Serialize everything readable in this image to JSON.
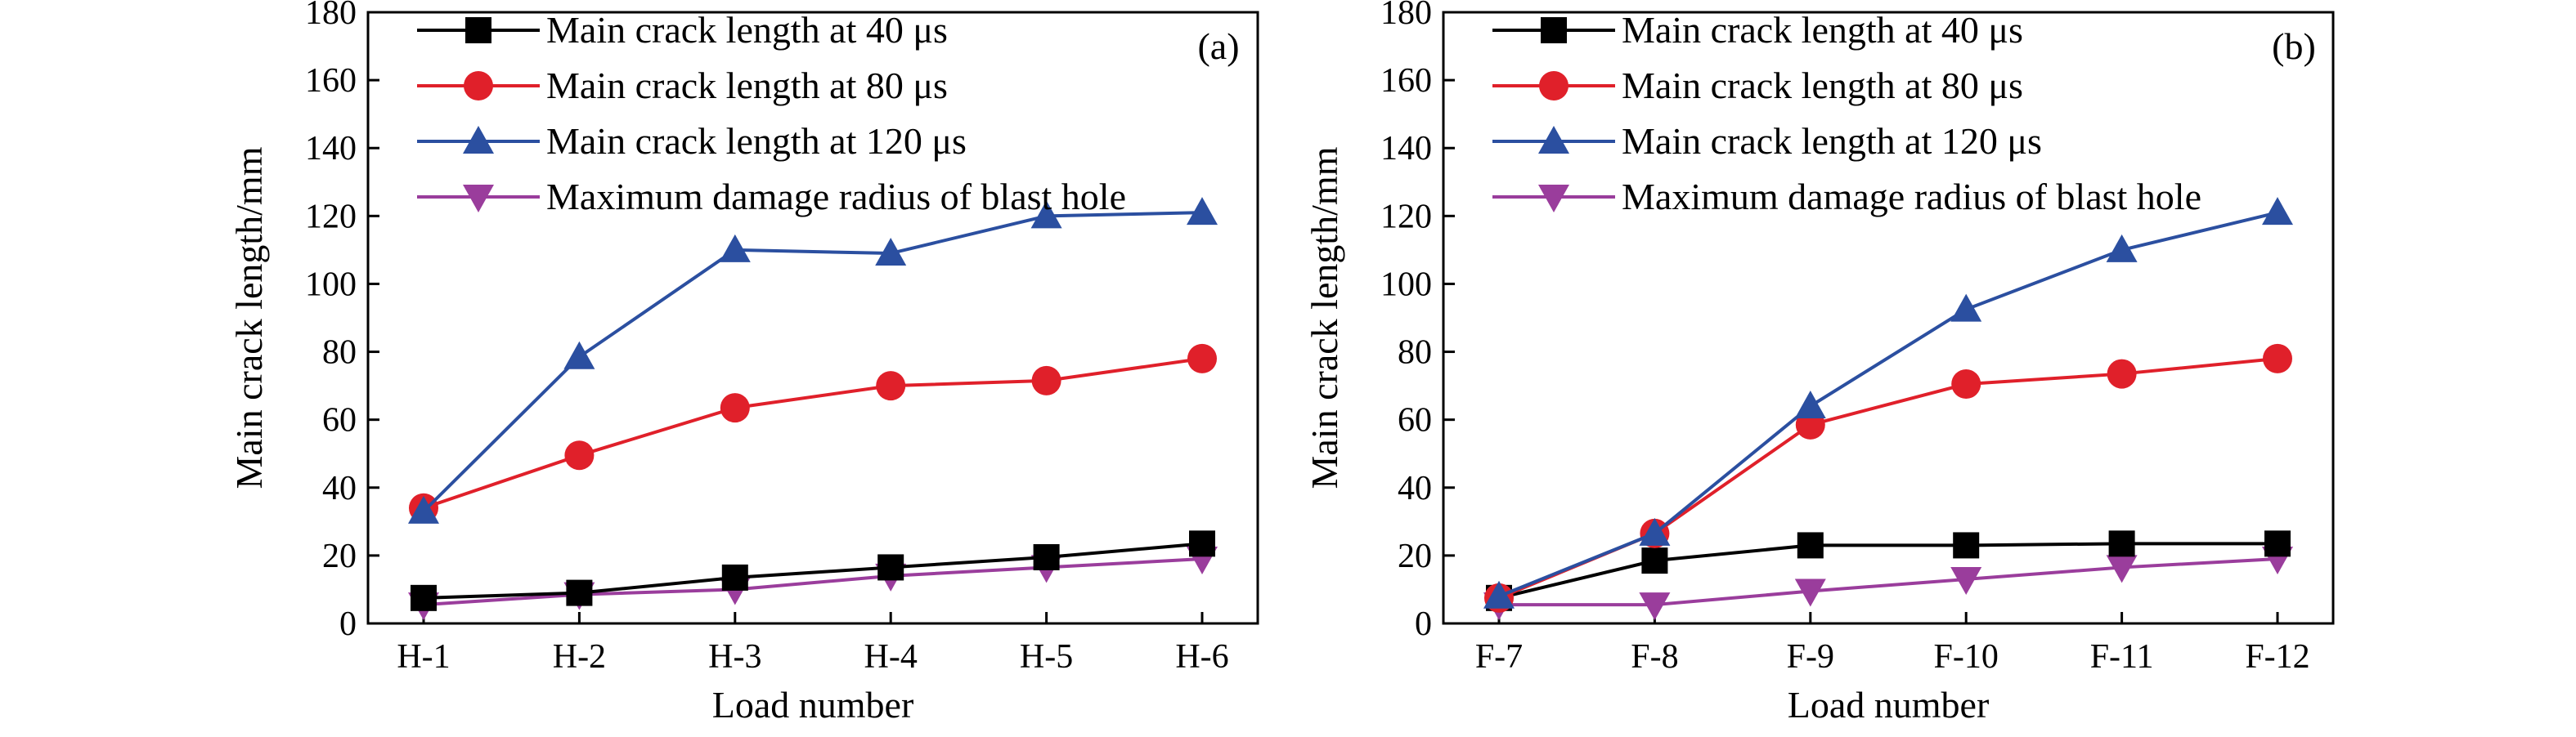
{
  "chart_data": [
    {
      "type": "line",
      "panel_label": "(a)",
      "categories": [
        "H-1",
        "H-2",
        "H-3",
        "H-4",
        "H-5",
        "H-6"
      ],
      "xlabel": "Load number",
      "ylabel": "Main crack length/mm",
      "ylim": [
        0,
        180
      ],
      "yticks": [
        "0",
        "20",
        "40",
        "60",
        "80",
        "100",
        "120",
        "140",
        "160",
        "180"
      ],
      "legend_position": "top-left",
      "series": [
        {
          "name": "Main crack length at 40 μs",
          "color": "#000000",
          "marker": "square",
          "values": [
            7.5,
            9,
            13.5,
            16.5,
            19.5,
            23.5
          ]
        },
        {
          "name": "Main crack length at 80 μs",
          "color": "#e0202a",
          "marker": "circle",
          "values": [
            34,
            49.5,
            63.5,
            70,
            71.5,
            78
          ]
        },
        {
          "name": "Main crack length at 120 μs",
          "color": "#2b4fa0",
          "marker": "triangle-up",
          "values": [
            33,
            78.5,
            110,
            109,
            120,
            121
          ]
        },
        {
          "name": "Maximum damage radius of blast hole",
          "color": "#9a3d9c",
          "marker": "triangle-down",
          "values": [
            5.5,
            8.5,
            10,
            14,
            16.5,
            19
          ]
        }
      ]
    },
    {
      "type": "line",
      "panel_label": "(b)",
      "categories": [
        "F-7",
        "F-8",
        "F-9",
        "F-10",
        "F-11",
        "F-12"
      ],
      "xlabel": "Load number",
      "ylabel": "Main crack length/mm",
      "ylim": [
        0,
        180
      ],
      "yticks": [
        "0",
        "20",
        "40",
        "60",
        "80",
        "100",
        "120",
        "140",
        "160",
        "180"
      ],
      "legend_position": "top-left",
      "series": [
        {
          "name": "Main crack length at 40 μs",
          "color": "#000000",
          "marker": "square",
          "values": [
            7.5,
            18.5,
            23,
            23,
            23.5,
            23.5
          ]
        },
        {
          "name": "Main crack length at 80 μs",
          "color": "#e0202a",
          "marker": "circle",
          "values": [
            7.5,
            26.5,
            58.5,
            70.5,
            73.5,
            78
          ]
        },
        {
          "name": "Main crack length at 120 μs",
          "color": "#2b4fa0",
          "marker": "triangle-up",
          "values": [
            8,
            26.5,
            64,
            92.5,
            110,
            121
          ]
        },
        {
          "name": "Maximum damage radius of blast hole",
          "color": "#9a3d9c",
          "marker": "triangle-down",
          "values": [
            5.5,
            5.5,
            9.5,
            13,
            16.5,
            19
          ]
        }
      ]
    }
  ]
}
